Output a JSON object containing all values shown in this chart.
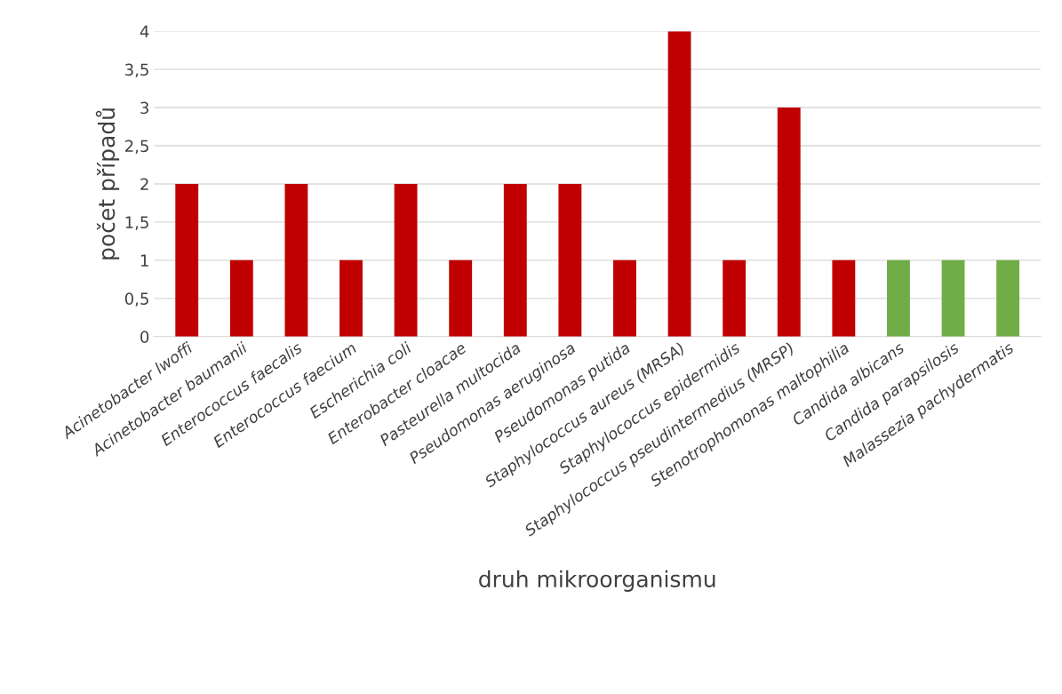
{
  "chart_data": {
    "type": "bar",
    "xlabel": "druh mikroorganismu",
    "ylabel": "počet případů",
    "categories": [
      "Acinetobacter lwoffi",
      "Acinetobacter baumanii",
      "Enterococcus faecalis",
      "Enterococcus faecium",
      "Escherichia coli",
      "Enterobacter cloacae",
      "Pasteurella multocida",
      "Pseudomonas aeruginosa",
      "Pseudomonas putida",
      "Staphylococcus aureus (MRSA)",
      "Staphylococcus epidermidis",
      "Staphylococcus pseudintermedius (MRSP)",
      "Stenotrophomonas maltophilia",
      "Candida albicans",
      "Candida parapsilosis",
      "Malassezia pachydermatis"
    ],
    "values": [
      2,
      1,
      2,
      1,
      2,
      1,
      2,
      2,
      1,
      4,
      1,
      3,
      1,
      1,
      1,
      1
    ],
    "colors": [
      "#c00000",
      "#c00000",
      "#c00000",
      "#c00000",
      "#c00000",
      "#c00000",
      "#c00000",
      "#c00000",
      "#c00000",
      "#c00000",
      "#c00000",
      "#c00000",
      "#c00000",
      "#70ad47",
      "#70ad47",
      "#70ad47"
    ],
    "ylim": [
      0,
      4
    ],
    "yticks": [
      0,
      {
        "value": 0.5,
        "label": "0,5"
      },
      1,
      {
        "value": 1.5,
        "label": "1,5"
      },
      2,
      {
        "value": 2.5,
        "label": "2,5"
      },
      3,
      {
        "value": 3.5,
        "label": "3,5"
      },
      4
    ],
    "grid": "y",
    "legend": false
  }
}
